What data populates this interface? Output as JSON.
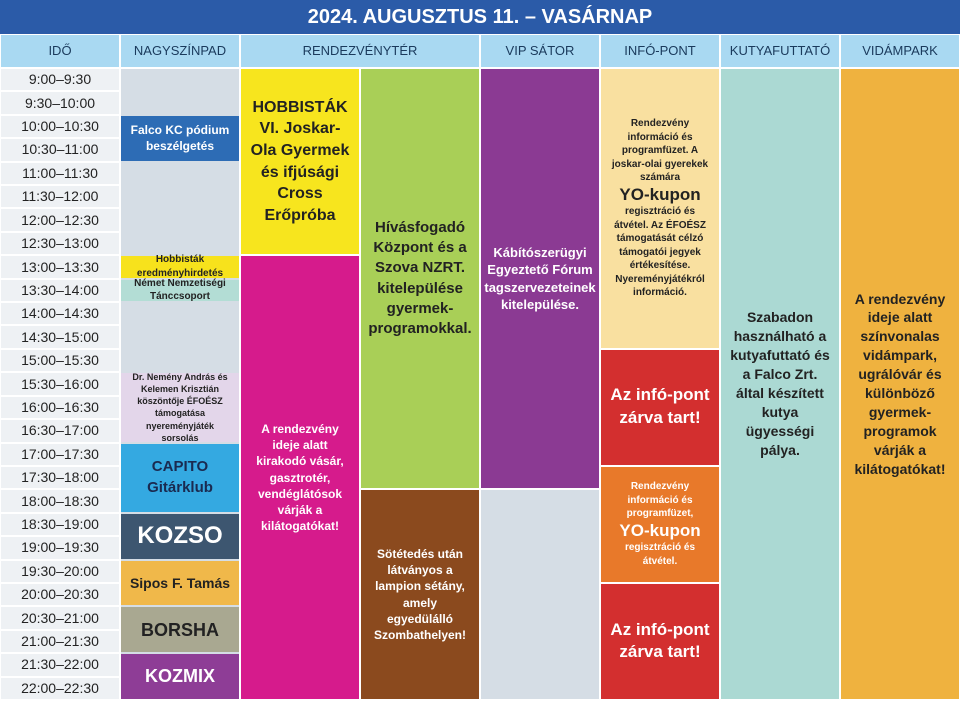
{
  "title": "2024. AUGUSZTUS 11. – VASÁRNAP",
  "columns": [
    "IDŐ",
    "NAGYSZÍNPAD",
    "RENDEZVÉNYTÉR",
    "VIP SÁTOR",
    "INFÓ-PONT",
    "KUTYAFUTTATÓ",
    "VIDÁMPARK"
  ],
  "times": [
    "9:00–9:30",
    "9:30–10:00",
    "10:00–10:30",
    "10:30–11:00",
    "11:00–11:30",
    "11:30–12:00",
    "12:00–12:30",
    "12:30–13:00",
    "13:00–13:30",
    "13:30–14:00",
    "14:00–14:30",
    "14:30–15:00",
    "15:00–15:30",
    "15:30–16:00",
    "16:00–16:30",
    "16:30–17:00",
    "17:00–17:30",
    "17:30–18:00",
    "18:00–18:30",
    "18:30–19:00",
    "19:00–19:30",
    "19:30–20:00",
    "20:00–20:30",
    "20:30–21:00",
    "21:00–21:30",
    "21:30–22:00",
    "22:00–22:30"
  ],
  "nagyszinpad": [
    "Falco KC pódium beszélgetés",
    "Hobbisták eredményhirdetés",
    "Német Nemzetiségi Tánccsoport",
    "Dr. Nemény András és Kelemen Krisztián köszöntője ÉFOÉSZ támogatása nyereményjáték sorsolás",
    "CAPITO Gitárklub",
    "KOZSO",
    "Sipos F. Tamás",
    "BORSHA",
    "KOZMIX"
  ],
  "rendezvenyter": [
    "HOBBISTÁK VI. Joskar-Ola Gyermek és ifjúsági Cross Erőpróba",
    "A rendezvény ideje alatt kirakodó vásár, gasztrotér, vendéglátósok várják a kilátogatókat!",
    "Hívásfogadó Központ és a Szova NZRT. kitelepülése gyermek-programokkal.",
    "Sötétedés után látványos a lampion sétány, amely egyedülálló Szombathelyen!"
  ],
  "vip_sator": [
    "Kábítószerügyi Egyeztető Fórum tagszervezeteinek kitelepülése."
  ],
  "info_pont": [
    [
      "Rendezvény információ és programfüzet. A joskar-olai gyerekek számára",
      "YO-kupon",
      "regisztráció és átvétel. Az ÉFOÉSZ támogatását célzó támogatói jegyek értékesítése. Nyereményjátékról információ."
    ],
    [
      "Az infó-pont zárva tart!"
    ],
    [
      "Rendezvény információ és programfüzet,",
      "YO-kupon",
      "regisztráció és átvétel."
    ],
    [
      "Az infó-pont zárva tart!"
    ]
  ],
  "kutyafuttato": [
    "Szabadon használható a kutyafuttató és a Falco Zrt. által készített kutya ügyességi pálya."
  ],
  "vidampark": [
    "A rendezvény ideje alatt színvonalas vidámpark, ugrálóvár és különböző gyermek-programok várják a kilátogatókat!"
  ]
}
